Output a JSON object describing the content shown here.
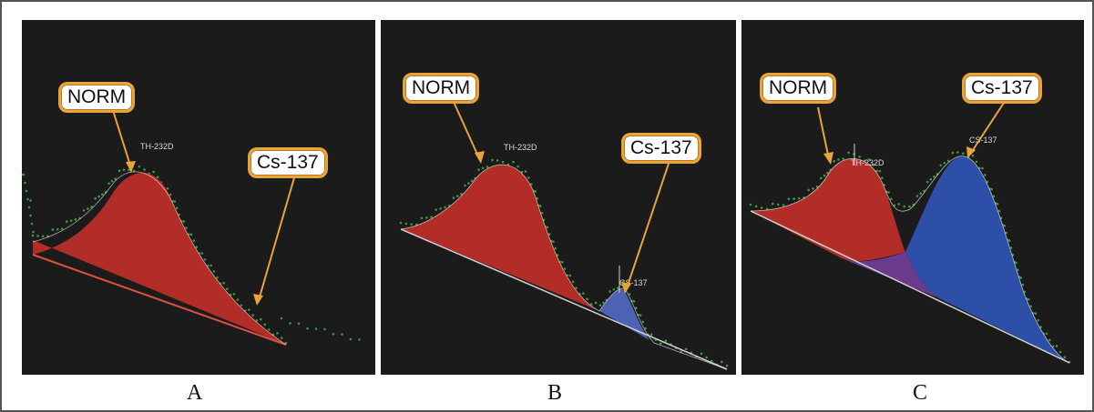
{
  "chart_data": [
    {
      "type": "area",
      "panel": "A",
      "background": "#1b1b1b",
      "callouts": {
        "norm": "NORM",
        "cs": "Cs-137"
      },
      "peak_labels": [
        "TH-232D"
      ],
      "series": [
        {
          "name": "NORM",
          "color": "#b22d28"
        }
      ],
      "data_points": {
        "color": "#3b9a3b"
      }
    },
    {
      "type": "area",
      "panel": "B",
      "background": "#1b1b1b",
      "callouts": {
        "norm": "NORM",
        "cs": "Cs-137"
      },
      "peak_labels": [
        "TH-232D",
        "CS-137"
      ],
      "series": [
        {
          "name": "NORM",
          "color": "#b22d28"
        },
        {
          "name": "Cs-137",
          "color": "#3e56a8"
        }
      ],
      "data_points": {
        "color": "#3b9a3b"
      }
    },
    {
      "type": "area",
      "panel": "C",
      "background": "#1b1b1b",
      "callouts": {
        "norm": "NORM",
        "cs": "Cs-137"
      },
      "peak_labels": [
        "TH-232D",
        "CS-137"
      ],
      "series": [
        {
          "name": "NORM",
          "color": "#b22d28"
        },
        {
          "name": "Cs-137",
          "color": "#2d4fa8"
        },
        {
          "name": "overlap",
          "color": "#6a3a8c"
        }
      ],
      "data_points": {
        "color": "#3b9a3b"
      }
    }
  ],
  "panel_letters": [
    "A",
    "B",
    "C"
  ],
  "colors": {
    "callout_border": "#e8a33a",
    "arrow": "#e8a33a",
    "norm_fill": "#b22d28",
    "cs_fill": "#2d4fa8",
    "points": "#3b9a3b"
  }
}
